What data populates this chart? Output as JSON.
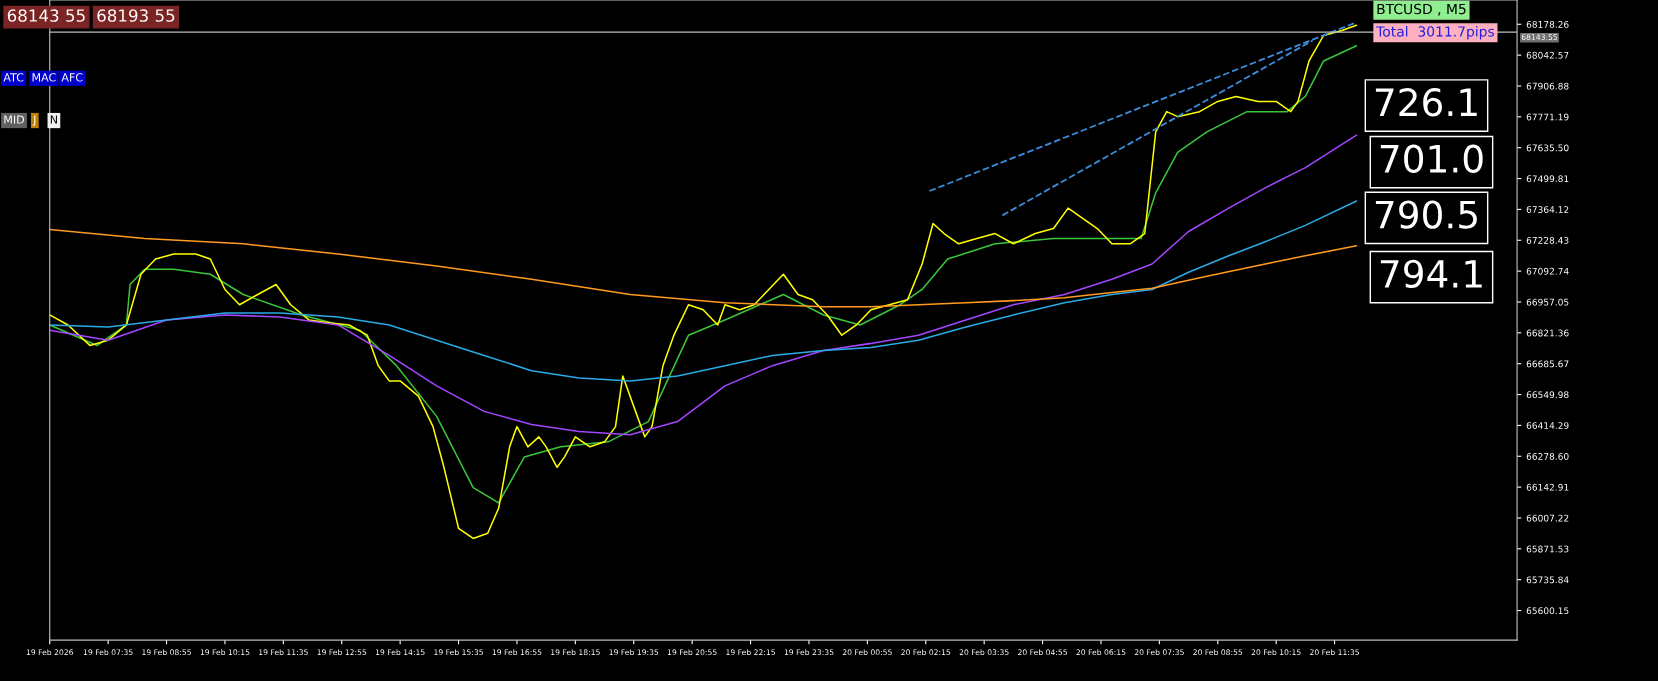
{
  "chart_data": {
    "type": "line",
    "xlim": [
      "2026-02-19T06:15",
      "2026-02-20T15:45"
    ],
    "ylim": [
      65470,
      68285
    ],
    "xticks": [
      {
        "value": "2026-02-19T06:15",
        "label": "19 Feb 2026"
      },
      {
        "value": "2026-02-19T07:35",
        "label": "19 Feb 07:35"
      },
      {
        "value": "2026-02-19T08:55",
        "label": "19 Feb 08:55"
      },
      {
        "value": "2026-02-19T10:15",
        "label": "19 Feb 10:15"
      },
      {
        "value": "2026-02-19T11:35",
        "label": "19 Feb 11:35"
      },
      {
        "value": "2026-02-19T12:55",
        "label": "19 Feb 12:55"
      },
      {
        "value": "2026-02-19T14:15",
        "label": "19 Feb 14:15"
      },
      {
        "value": "2026-02-19T15:35",
        "label": "19 Feb 15:35"
      },
      {
        "value": "2026-02-19T16:55",
        "label": "19 Feb 16:55"
      },
      {
        "value": "2026-02-19T18:15",
        "label": "19 Feb 18:15"
      },
      {
        "value": "2026-02-19T19:35",
        "label": "19 Feb 19:35"
      },
      {
        "value": "2026-02-19T20:55",
        "label": "19 Feb 20:55"
      },
      {
        "value": "2026-02-19T22:15",
        "label": "19 Feb 22:15"
      },
      {
        "value": "2026-02-19T23:35",
        "label": "19 Feb 23:35"
      },
      {
        "value": "2026-02-20T00:55",
        "label": "20 Feb 00:55"
      },
      {
        "value": "2026-02-20T02:15",
        "label": "20 Feb 02:15"
      },
      {
        "value": "2026-02-20T03:35",
        "label": "20 Feb 03:35"
      },
      {
        "value": "2026-02-20T04:55",
        "label": "20 Feb 04:55"
      },
      {
        "value": "2026-02-20T06:15",
        "label": "20 Feb 06:15"
      },
      {
        "value": "2026-02-20T07:35",
        "label": "20 Feb 07:35"
      },
      {
        "value": "2026-02-20T08:55",
        "label": "20 Feb 08:55"
      },
      {
        "value": "2026-02-20T10:15",
        "label": "20 Feb 10:15"
      },
      {
        "value": "2026-02-20T11:35",
        "label": "20 Feb 11:35"
      }
    ],
    "yticks": [
      {
        "value": 65600.15,
        "label": "65600.15"
      },
      {
        "value": 65735.84,
        "label": "65735.84"
      },
      {
        "value": 65871.53,
        "label": "65871.53"
      },
      {
        "value": 66007.22,
        "label": "66007.22"
      },
      {
        "value": 66142.91,
        "label": "66142.91"
      },
      {
        "value": 66278.6,
        "label": "66278.60"
      },
      {
        "value": 66414.29,
        "label": "66414.29"
      },
      {
        "value": 66549.98,
        "label": "66549.98"
      },
      {
        "value": 66685.67,
        "label": "66685.67"
      },
      {
        "value": 66821.36,
        "label": "66821.36"
      },
      {
        "value": 66957.05,
        "label": "66957.05"
      },
      {
        "value": 67092.74,
        "label": "67092.74"
      },
      {
        "value": 67228.43,
        "label": "67228.43"
      },
      {
        "value": 67364.12,
        "label": "67364.12"
      },
      {
        "value": 67499.81,
        "label": "67499.81"
      },
      {
        "value": 67635.5,
        "label": "67635.50"
      },
      {
        "value": 67771.19,
        "label": "67771.19"
      },
      {
        "value": 67906.88,
        "label": "67906.88"
      },
      {
        "value": 68042.57,
        "label": "68042.57"
      },
      {
        "value": 68178.26,
        "label": "68178.26"
      }
    ],
    "grid": false,
    "legend": false,
    "ref_lines": [
      {
        "axis": "y",
        "value": 68143.55,
        "label": "68143.55",
        "color": "#c0c0c0"
      }
    ],
    "series": [
      {
        "color": "#39c639",
        "x": [
          "2026-02-19T06:15",
          "2026-02-19T07:20",
          "2026-02-19T08:00",
          "2026-02-19T08:05",
          "2026-02-19T08:25",
          "2026-02-19T09:05",
          "2026-02-19T09:55",
          "2026-02-19T10:40",
          "2026-02-19T12:00",
          "2026-02-19T13:20",
          "2026-02-19T14:10",
          "2026-02-19T15:05",
          "2026-02-19T15:55",
          "2026-02-19T16:30",
          "2026-02-19T17:05",
          "2026-02-19T17:55",
          "2026-02-19T19:00",
          "2026-02-19T19:55",
          "2026-02-19T20:50",
          "2026-02-19T21:40",
          "2026-02-19T23:00",
          "2026-02-19T23:55",
          "2026-02-20T00:45",
          "2026-02-20T01:40",
          "2026-02-20T02:10",
          "2026-02-20T02:45",
          "2026-02-20T03:50",
          "2026-02-20T05:10",
          "2026-02-20T06:30",
          "2026-02-20T07:10",
          "2026-02-20T07:30",
          "2026-02-20T08:00",
          "2026-02-20T08:40",
          "2026-02-20T09:35",
          "2026-02-20T10:30",
          "2026-02-20T10:55",
          "2026-02-20T11:20",
          "2026-02-20T12:05"
        ],
        "values": [
          66856,
          66766,
          66856,
          67034,
          67101,
          67101,
          67079,
          66990,
          66900,
          66833,
          66677,
          66454,
          66141,
          66074,
          66275,
          66320,
          66342,
          66431,
          66811,
          66878,
          66990,
          66900,
          66856,
          66945,
          67012,
          67146,
          67213,
          67236,
          67236,
          67236,
          67437,
          67615,
          67705,
          67794,
          67794,
          67861,
          68017,
          68084
        ]
      },
      {
        "color": "#ffff00",
        "x": [
          "2026-02-19T06:15",
          "2026-02-19T06:40",
          "2026-02-19T07:10",
          "2026-02-19T07:35",
          "2026-02-19T08:00",
          "2026-02-19T08:20",
          "2026-02-19T08:40",
          "2026-02-19T09:05",
          "2026-02-19T09:35",
          "2026-02-19T09:55",
          "2026-02-19T10:15",
          "2026-02-19T10:35",
          "2026-02-19T11:00",
          "2026-02-19T11:25",
          "2026-02-19T11:45",
          "2026-02-19T12:10",
          "2026-02-19T12:40",
          "2026-02-19T13:05",
          "2026-02-19T13:30",
          "2026-02-19T13:45",
          "2026-02-19T14:00",
          "2026-02-19T14:15",
          "2026-02-19T14:40",
          "2026-02-19T15:00",
          "2026-02-19T15:15",
          "2026-02-19T15:35",
          "2026-02-19T15:55",
          "2026-02-19T16:15",
          "2026-02-19T16:30",
          "2026-02-19T16:45",
          "2026-02-19T16:55",
          "2026-02-19T17:10",
          "2026-02-19T17:25",
          "2026-02-19T17:35",
          "2026-02-19T17:50",
          "2026-02-19T18:00",
          "2026-02-19T18:15",
          "2026-02-19T18:35",
          "2026-02-19T18:55",
          "2026-02-19T19:10",
          "2026-02-19T19:20",
          "2026-02-19T19:35",
          "2026-02-19T19:50",
          "2026-02-19T20:00",
          "2026-02-19T20:15",
          "2026-02-19T20:30",
          "2026-02-19T20:50",
          "2026-02-19T21:10",
          "2026-02-19T21:30",
          "2026-02-19T21:40",
          "2026-02-19T22:00",
          "2026-02-19T22:20",
          "2026-02-19T22:40",
          "2026-02-19T23:00",
          "2026-02-19T23:20",
          "2026-02-19T23:40",
          "2026-02-20T00:00",
          "2026-02-20T00:20",
          "2026-02-20T00:40",
          "2026-02-20T01:00",
          "2026-02-20T01:25",
          "2026-02-20T01:50",
          "2026-02-20T02:10",
          "2026-02-20T02:25",
          "2026-02-20T02:40",
          "2026-02-20T03:00",
          "2026-02-20T03:25",
          "2026-02-20T03:50",
          "2026-02-20T04:15",
          "2026-02-20T04:45",
          "2026-02-20T05:10",
          "2026-02-20T05:30",
          "2026-02-20T05:50",
          "2026-02-20T06:10",
          "2026-02-20T06:30",
          "2026-02-20T06:55",
          "2026-02-20T07:15",
          "2026-02-20T07:30",
          "2026-02-20T07:45",
          "2026-02-20T08:00",
          "2026-02-20T08:30",
          "2026-02-20T08:55",
          "2026-02-20T09:20",
          "2026-02-20T09:50",
          "2026-02-20T10:15",
          "2026-02-20T10:35",
          "2026-02-20T10:45",
          "2026-02-20T11:00",
          "2026-02-20T11:20",
          "2026-02-20T11:45",
          "2026-02-20T12:05"
        ],
        "values": [
          66900,
          66856,
          66766,
          66789,
          66856,
          67079,
          67146,
          67168,
          67168,
          67146,
          67012,
          66945,
          66990,
          67034,
          66945,
          66878,
          66865,
          66856,
          66811,
          66677,
          66610,
          66610,
          66543,
          66409,
          66230,
          65962,
          65917,
          65940,
          66051,
          66320,
          66409,
          66320,
          66364,
          66320,
          66230,
          66275,
          66364,
          66320,
          66342,
          66409,
          66632,
          66498,
          66364,
          66409,
          66677,
          66811,
          66945,
          66923,
          66856,
          66945,
          66923,
          66945,
          67012,
          67079,
          66990,
          66967,
          66900,
          66811,
          66856,
          66923,
          66945,
          66967,
          67124,
          67302,
          67258,
          67213,
          67236,
          67258,
          67213,
          67258,
          67280,
          67370,
          67325,
          67280,
          67213,
          67213,
          67258,
          67705,
          67794,
          67772,
          67794,
          67839,
          67861,
          67839,
          67839,
          67794,
          67839,
          68017,
          68129,
          68151,
          68174
        ]
      },
      {
        "color": "#a346ff",
        "x": [
          "2026-02-19T06:15",
          "2026-02-19T07:35",
          "2026-02-19T08:55",
          "2026-02-19T10:15",
          "2026-02-19T11:30",
          "2026-02-19T12:50",
          "2026-02-19T14:00",
          "2026-02-19T15:05",
          "2026-02-19T16:10",
          "2026-02-19T17:15",
          "2026-02-19T18:20",
          "2026-02-19T19:30",
          "2026-02-19T20:35",
          "2026-02-19T21:40",
          "2026-02-19T22:45",
          "2026-02-19T23:55",
          "2026-02-20T01:00",
          "2026-02-20T02:05",
          "2026-02-20T03:10",
          "2026-02-20T04:15",
          "2026-02-20T05:25",
          "2026-02-20T06:30",
          "2026-02-20T07:25",
          "2026-02-20T08:15",
          "2026-02-20T09:10",
          "2026-02-20T10:00",
          "2026-02-20T10:55",
          "2026-02-20T12:05"
        ],
        "values": [
          66833,
          66789,
          66878,
          66900,
          66891,
          66856,
          66722,
          66588,
          66476,
          66418,
          66387,
          66373,
          66431,
          66588,
          66677,
          66744,
          66775,
          66811,
          66878,
          66945,
          66990,
          67057,
          67124,
          67267,
          67370,
          67459,
          67548,
          67691
        ]
      },
      {
        "color": "#2aaae6",
        "x": [
          "2026-02-19T06:15",
          "2026-02-19T07:35",
          "2026-02-19T08:55",
          "2026-02-19T10:15",
          "2026-02-19T11:30",
          "2026-02-19T12:50",
          "2026-02-19T14:00",
          "2026-02-19T15:05",
          "2026-02-19T16:10",
          "2026-02-19T17:15",
          "2026-02-19T18:20",
          "2026-02-19T19:30",
          "2026-02-19T20:35",
          "2026-02-19T21:40",
          "2026-02-19T22:45",
          "2026-02-19T23:55",
          "2026-02-20T01:00",
          "2026-02-20T02:05",
          "2026-02-20T03:10",
          "2026-02-20T04:15",
          "2026-02-20T05:25",
          "2026-02-20T06:30",
          "2026-02-20T07:25",
          "2026-02-20T08:15",
          "2026-02-20T09:10",
          "2026-02-20T10:00",
          "2026-02-20T10:55",
          "2026-02-20T12:05"
        ],
        "values": [
          66856,
          66847,
          66878,
          66909,
          66909,
          66891,
          66856,
          66789,
          66722,
          66655,
          66623,
          66610,
          66632,
          66677,
          66722,
          66744,
          66757,
          66789,
          66847,
          66900,
          66954,
          66990,
          67012,
          67088,
          67160,
          67222,
          67294,
          67401
        ]
      },
      {
        "color": "#ff9a1e",
        "x": [
          "2026-02-19T06:15",
          "2026-02-19T08:25",
          "2026-02-19T10:40",
          "2026-02-19T12:50",
          "2026-02-19T15:05",
          "2026-02-19T17:15",
          "2026-02-19T19:30",
          "2026-02-19T21:40",
          "2026-02-19T23:55",
          "2026-02-20T01:00",
          "2026-02-20T02:05",
          "2026-02-20T03:10",
          "2026-02-20T04:15",
          "2026-02-20T05:25",
          "2026-02-20T06:30",
          "2026-02-20T07:25",
          "2026-02-20T08:40",
          "2026-02-20T10:00",
          "2026-02-20T10:55",
          "2026-02-20T12:05"
        ],
        "values": [
          67276,
          67236,
          67213,
          67168,
          67115,
          67057,
          66990,
          66954,
          66936,
          66936,
          66945,
          66954,
          66963,
          66976,
          66999,
          67017,
          67070,
          67124,
          67160,
          67204
        ]
      },
      {
        "color": "#3c8cdc",
        "line_style": "dashed",
        "x": [
          "2026-02-20T02:20",
          "2026-02-20T12:05"
        ],
        "values": [
          67445,
          68187
        ]
      },
      {
        "color": "#3c8cdc",
        "line_style": "dashed",
        "x": [
          "2026-02-20T04:00",
          "2026-02-20T11:05"
        ],
        "values": [
          67338,
          68107
        ]
      }
    ],
    "annotations": [
      "68143 55",
      "68193 55",
      "ATC",
      "MAC",
      "AFC",
      "MID",
      "J",
      "N",
      "BTCUSD , M5",
      "Total  3011.7pips",
      "726.1",
      "701.0",
      "790.5",
      "794.1"
    ]
  }
}
